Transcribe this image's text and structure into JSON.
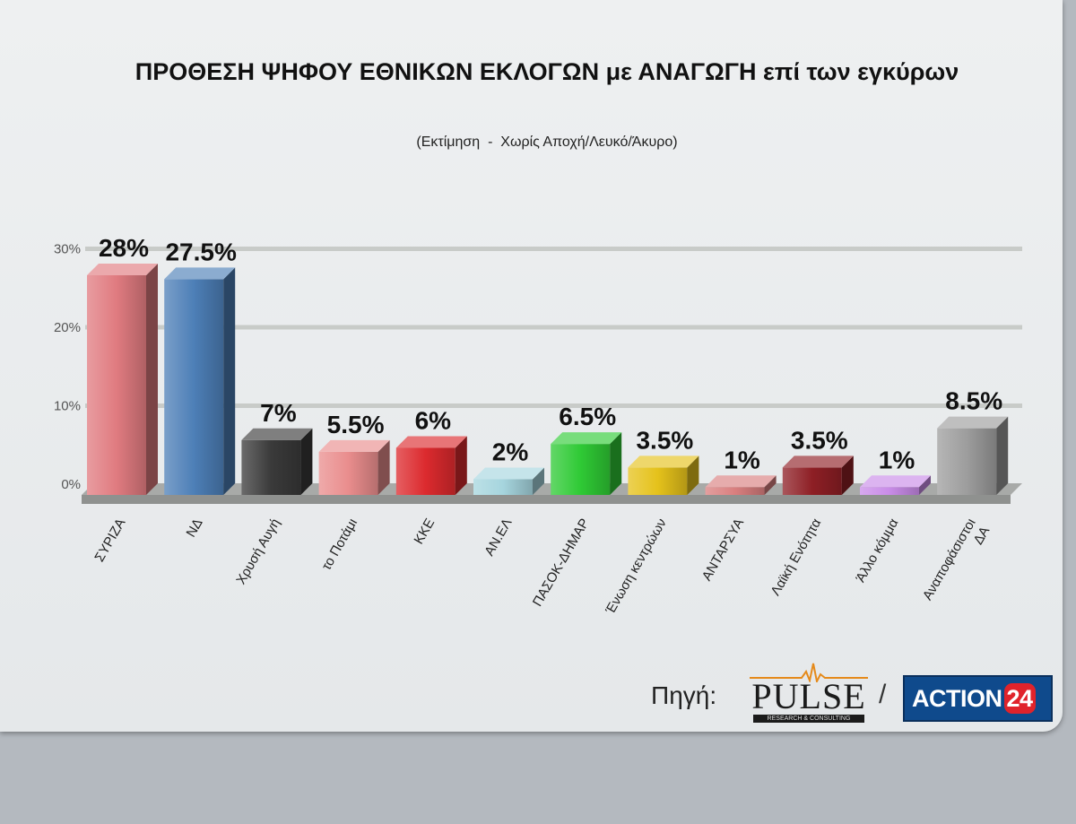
{
  "chart_data": {
    "type": "bar",
    "title": "ΠΡΟΘΕΣΗ ΨΗΦΟΥ ΕΘΝΙΚΩΝ ΕΚΛΟΓΩΝ με ΑΝΑΓΩΓΗ επί των εγκύρων",
    "subtitle": "(Εκτίμηση  -  Χωρίς Αποχή/Λευκό/Άκυρο)",
    "categories": [
      "ΣΥΡΙΖΑ",
      "ΝΔ",
      "Χρυσή Αυγή",
      "το Ποτάμι",
      "ΚΚΕ",
      "ΑΝ.ΕΛ",
      "ΠΑΣΟΚ-ΔΗΜΑΡ",
      "Ένωση κεντρώων",
      "ΑΝΤΑΡΣΥΑ",
      "Λαϊκή Ενότητα",
      "Άλλο κόμμα",
      "Αναποφάσιστοι ΔΑ"
    ],
    "values": [
      28,
      27.5,
      7,
      5.5,
      6,
      2,
      6.5,
      3.5,
      1,
      3.5,
      1,
      8.5
    ],
    "value_labels": [
      "28%",
      "27.5%",
      "7%",
      "5.5%",
      "6%",
      "2%",
      "6.5%",
      "3.5%",
      "1%",
      "3.5%",
      "1%",
      "8.5%"
    ],
    "colors": [
      "#e07b80",
      "#4d7fb7",
      "#3a3a3a",
      "#e98d8d",
      "#dc2a2e",
      "#a6d5de",
      "#2fca35",
      "#e5c21b",
      "#d97f7f",
      "#8e1f25",
      "#c98ce8",
      "#9d9d9d"
    ],
    "yticks": [
      "0%",
      "10%",
      "20%",
      "30%"
    ],
    "ylim": [
      0,
      30
    ],
    "grid": true,
    "legend": "none"
  },
  "footer": {
    "source_label": "Πηγή:",
    "pulse_logo_text": "PULSE",
    "pulse_tagline": "RESEARCH & CONSULTING",
    "separator": "/",
    "action_logo_text": "ACTION",
    "action_logo_number": "24"
  }
}
